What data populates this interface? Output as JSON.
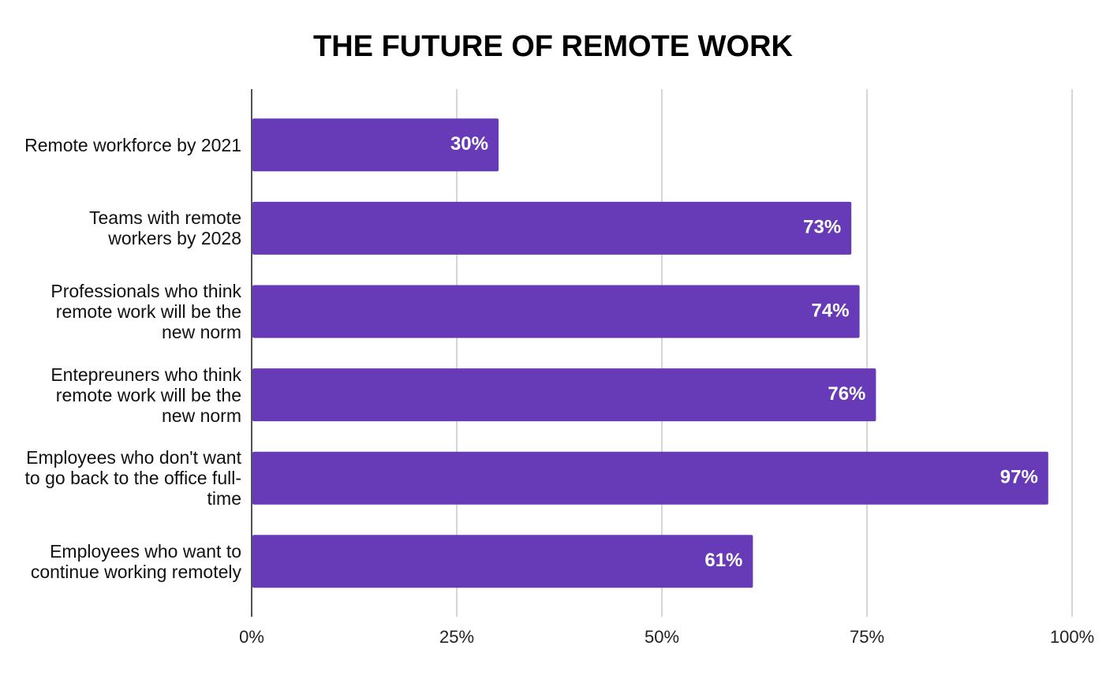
{
  "chart_data": {
    "type": "hbar",
    "title": "THE FUTURE OF REMOTE WORK",
    "categories": [
      "Remote workforce by 2021",
      "Teams with remote workers by 2028",
      "Professionals who think remote work will be the new norm",
      "Entepreuners who think remote work will be the new norm",
      "Employees who don't want to go back to the office full-time",
      "Employees who want to continue working remotely"
    ],
    "values": [
      30,
      73,
      74,
      76,
      97,
      61
    ],
    "value_labels": [
      "30%",
      "73%",
      "74%",
      "76%",
      "97%",
      "61%"
    ],
    "color": "#673ab7",
    "xlim": [
      0,
      100
    ],
    "xticks": [
      {
        "value": 0,
        "label": "0%"
      },
      {
        "value": 25,
        "label": "25%"
      },
      {
        "value": 50,
        "label": "50%"
      },
      {
        "value": 75,
        "label": "75%"
      },
      {
        "value": 100,
        "label": "100%"
      }
    ],
    "grid": true
  }
}
